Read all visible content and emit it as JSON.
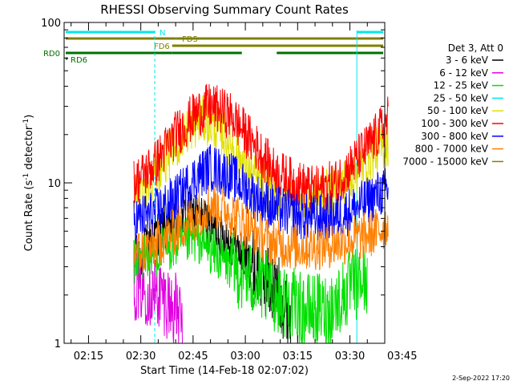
{
  "chart_data": {
    "type": "line",
    "title": "RHESSI Observing Summary Count Rates",
    "xlabel": "Start Time (14-Feb-18 02:07:02)",
    "ylabel": "Count Rate (s⁻¹ detector⁻¹)",
    "ylabel_base": "Count Rate (s",
    "ylabel_mid": " detector",
    "ylabel_sup": "-1",
    "ylabel_end": ")",
    "y_scale": "log",
    "ylim": [
      1,
      100
    ],
    "xlim_minutes": [
      8,
      100
    ],
    "y_tick_labels": [
      {
        "value": 1,
        "label": "1"
      },
      {
        "value": 10,
        "label": "10"
      },
      {
        "value": 100,
        "label": "100"
      }
    ],
    "x_tick_labels": [
      {
        "minute": 15,
        "label": "02:15"
      },
      {
        "minute": 30,
        "label": "02:30"
      },
      {
        "minute": 45,
        "label": "02:45"
      },
      {
        "minute": 60,
        "label": "03:00"
      },
      {
        "minute": 75,
        "label": "03:15"
      },
      {
        "minute": 90,
        "label": "03:30"
      },
      {
        "minute": 105,
        "label": "03:45"
      }
    ],
    "legend_header": "Det 3, Att 0",
    "legend_position": "right",
    "series": [
      {
        "name": "3 - 6 keV",
        "color": "#000000",
        "start_min": 28,
        "end_min": 73,
        "t": [
          28,
          35,
          45,
          55,
          62,
          70,
          73
        ],
        "v": [
          3.2,
          5,
          6.5,
          4.5,
          3,
          2,
          1.5
        ]
      },
      {
        "name": "6 - 12 keV",
        "color": "#e000e0",
        "start_min": 28,
        "end_min": 42,
        "t": [
          28,
          32,
          36,
          40,
          42
        ],
        "v": [
          2.4,
          2.2,
          2,
          1.6,
          1.3
        ]
      },
      {
        "name": "12 - 25 keV",
        "color": "#00e000",
        "start_min": 28,
        "end_min": 95,
        "t": [
          28,
          36,
          46,
          56,
          66,
          76,
          84,
          90,
          95
        ],
        "v": [
          3.2,
          3.8,
          4.5,
          3,
          2.2,
          1.6,
          1.6,
          2.2,
          2.6
        ]
      },
      {
        "name": "25 - 50 keV",
        "color": "#00e8e8",
        "start_min": 95,
        "end_min": 95,
        "t": [],
        "v": []
      },
      {
        "name": "50 - 100 keV",
        "color": "#e0e000",
        "start_min": 28,
        "end_min": 101,
        "t": [
          28,
          36,
          44,
          48,
          54,
          62,
          70,
          78,
          86,
          92,
          98,
          101
        ],
        "v": [
          8,
          13,
          22,
          25,
          20,
          11,
          8,
          8,
          9,
          12,
          16,
          18
        ]
      },
      {
        "name": "100 - 300 keV",
        "color": "#ff0000",
        "start_min": 28,
        "end_min": 101,
        "t": [
          28,
          34,
          40,
          46,
          50,
          56,
          62,
          68,
          74,
          80,
          86,
          92,
          98,
          101
        ],
        "v": [
          10,
          13,
          20,
          27,
          30,
          26,
          18,
          12,
          10,
          9,
          10,
          14,
          20,
          25
        ]
      },
      {
        "name": "300 - 800 keV",
        "color": "#0000ff",
        "start_min": 28,
        "end_min": 101,
        "t": [
          28,
          34,
          40,
          46,
          50,
          56,
          62,
          68,
          74,
          80,
          86,
          92,
          98,
          101
        ],
        "v": [
          5.8,
          6.5,
          8,
          11,
          12.5,
          11,
          8.5,
          7,
          6.3,
          6,
          6.2,
          7,
          8.5,
          9
        ]
      },
      {
        "name": "800 - 7000 keV",
        "color": "#ff8000",
        "start_min": 28,
        "end_min": 101,
        "t": [
          28,
          34,
          40,
          46,
          50,
          56,
          62,
          68,
          74,
          80,
          86,
          92,
          98,
          101
        ],
        "v": [
          3.6,
          4,
          5,
          6.2,
          7.5,
          6.5,
          5,
          4.2,
          4,
          4,
          4.2,
          4.5,
          5,
          5.5
        ]
      },
      {
        "name": "7000 - 15000 keV",
        "color": "#907800",
        "start_min": 28,
        "end_min": 28,
        "t": [],
        "v": []
      }
    ],
    "flags": [
      {
        "label": "N",
        "color": "#00e8e8",
        "segments": [
          [
            8,
            34
          ],
          [
            92,
            100
          ]
        ]
      },
      {
        "label": "FD5",
        "color": "#808000",
        "segments": [
          [
            8,
            40
          ],
          [
            40,
            100
          ]
        ]
      },
      {
        "label": "FD6",
        "color": "#808000",
        "segments": [
          [
            39,
            100
          ]
        ]
      },
      {
        "label": "RD0",
        "color": "#007000",
        "segments": [
          [
            8,
            39
          ],
          [
            39,
            59
          ],
          [
            69,
            91
          ],
          [
            91,
            100
          ]
        ]
      },
      {
        "label": "RD6",
        "color": "#007000",
        "segments": [
          [
            8,
            9
          ]
        ]
      }
    ],
    "vlines": [
      {
        "minute": 8,
        "style": "solid",
        "color": "#00e8e8"
      },
      {
        "minute": 34,
        "style": "dashed",
        "color": "#00e8e8"
      },
      {
        "minute": 92,
        "style": "solid",
        "color": "#00e8e8"
      },
      {
        "minute": 100,
        "style": "dashed",
        "color": "#00e8e8"
      }
    ]
  },
  "footer": {
    "date_stamp": "2-Sep-2022 17:20"
  }
}
